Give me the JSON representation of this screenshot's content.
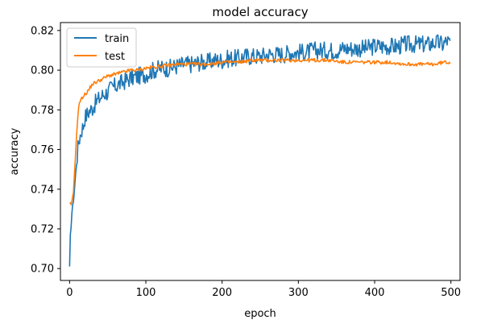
{
  "chart_data": {
    "type": "line",
    "title": "model accuracy",
    "xlabel": "epoch",
    "ylabel": "accuracy",
    "xlim": [
      -12,
      512
    ],
    "ylim": [
      0.694,
      0.824
    ],
    "xticks": [
      0,
      100,
      200,
      300,
      400,
      500
    ],
    "yticks": [
      0.7,
      0.72,
      0.74,
      0.76,
      0.78,
      0.8,
      0.82
    ],
    "ytick_labels": [
      "0.70",
      "0.72",
      "0.74",
      "0.76",
      "0.78",
      "0.80",
      "0.82"
    ],
    "legend_position": "upper-left",
    "series": [
      {
        "name": "train",
        "color": "#1f77b4",
        "x": [
          0,
          1,
          2,
          3,
          4,
          6,
          8,
          10,
          12,
          15,
          18,
          20,
          25,
          30,
          35,
          40,
          45,
          50,
          55,
          60,
          70,
          80,
          90,
          100,
          110,
          120,
          130,
          140,
          150,
          160,
          170,
          180,
          190,
          200,
          210,
          220,
          230,
          240,
          250,
          260,
          270,
          280,
          290,
          300,
          310,
          320,
          330,
          340,
          350,
          360,
          370,
          380,
          390,
          400,
          410,
          420,
          430,
          440,
          450,
          460,
          470,
          480,
          490,
          495,
          499
        ],
        "y": [
          0.7,
          0.716,
          0.722,
          0.728,
          0.731,
          0.738,
          0.748,
          0.757,
          0.764,
          0.769,
          0.772,
          0.776,
          0.779,
          0.781,
          0.784,
          0.786,
          0.788,
          0.789,
          0.791,
          0.792,
          0.794,
          0.796,
          0.797,
          0.798,
          0.8,
          0.801,
          0.801,
          0.802,
          0.803,
          0.803,
          0.804,
          0.804,
          0.805,
          0.805,
          0.806,
          0.806,
          0.807,
          0.807,
          0.807,
          0.808,
          0.808,
          0.808,
          0.809,
          0.809,
          0.809,
          0.81,
          0.81,
          0.81,
          0.81,
          0.811,
          0.811,
          0.811,
          0.811,
          0.812,
          0.812,
          0.812,
          0.812,
          0.813,
          0.813,
          0.813,
          0.813,
          0.814,
          0.813,
          0.815,
          0.813
        ]
      },
      {
        "name": "test",
        "color": "#ff7f0e",
        "x": [
          0,
          1,
          2,
          3,
          5,
          7,
          9,
          11,
          13,
          15,
          18,
          21,
          25,
          30,
          35,
          40,
          50,
          60,
          70,
          80,
          90,
          100,
          120,
          140,
          160,
          180,
          200,
          220,
          240,
          260,
          280,
          300,
          320,
          340,
          360,
          380,
          400,
          420,
          440,
          460,
          480,
          490,
          499
        ],
        "y": [
          0.733,
          0.733,
          0.732,
          0.734,
          0.738,
          0.752,
          0.766,
          0.778,
          0.784,
          0.785,
          0.787,
          0.788,
          0.79,
          0.793,
          0.794,
          0.795,
          0.797,
          0.798,
          0.799,
          0.8,
          0.8,
          0.801,
          0.802,
          0.803,
          0.803,
          0.803,
          0.804,
          0.804,
          0.805,
          0.805,
          0.805,
          0.805,
          0.805,
          0.805,
          0.804,
          0.804,
          0.804,
          0.804,
          0.803,
          0.803,
          0.803,
          0.804,
          0.804
        ]
      }
    ]
  }
}
